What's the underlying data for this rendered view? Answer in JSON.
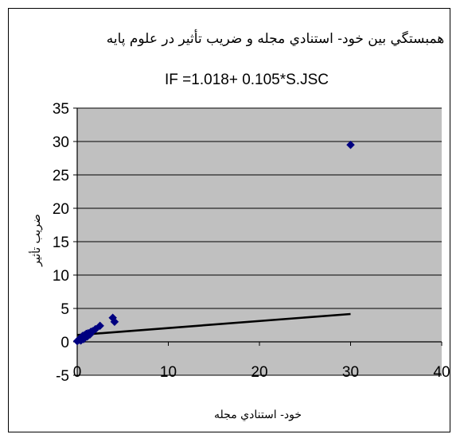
{
  "chart_data": {
    "type": "scatter",
    "title": "همبستگي بين خود- استنادي مجله و ضريب تأثير در علوم پايه",
    "annotation": "IF =1.018+ 0.105*S.JSC",
    "xlabel": "خود- استنادي مجله",
    "ylabel": "ضريب تأثير",
    "xlim": [
      0,
      40
    ],
    "ylim": [
      -5,
      35
    ],
    "x_ticks": [
      "0",
      "10",
      "20",
      "30",
      "40"
    ],
    "y_ticks": [
      "35",
      "30",
      "25",
      "20",
      "15",
      "10",
      "5",
      "0",
      "-5"
    ],
    "grid": true,
    "legend": "none",
    "plot_background": "#c0c0c0",
    "marker_color": "#000080",
    "line_color": "#000000",
    "trendline": {
      "intercept": 1.018,
      "slope": 0.105
    },
    "series": [
      {
        "points": [
          [
            0,
            0.1
          ],
          [
            0.2,
            0.3
          ],
          [
            0.3,
            0.5
          ],
          [
            0.4,
            0.2
          ],
          [
            0.5,
            0.6
          ],
          [
            0.6,
            0.9
          ],
          [
            0.7,
            0.4
          ],
          [
            0.8,
            1.0
          ],
          [
            0.9,
            0.7
          ],
          [
            1.0,
            1.2
          ],
          [
            1.1,
            0.8
          ],
          [
            1.2,
            1.3
          ],
          [
            1.4,
            1.1
          ],
          [
            1.5,
            1.5
          ],
          [
            1.7,
            1.6
          ],
          [
            2.0,
            1.9
          ],
          [
            2.5,
            2.4
          ],
          [
            3.9,
            3.6
          ],
          [
            4.1,
            3.0
          ],
          [
            30,
            29.5
          ]
        ]
      }
    ]
  }
}
